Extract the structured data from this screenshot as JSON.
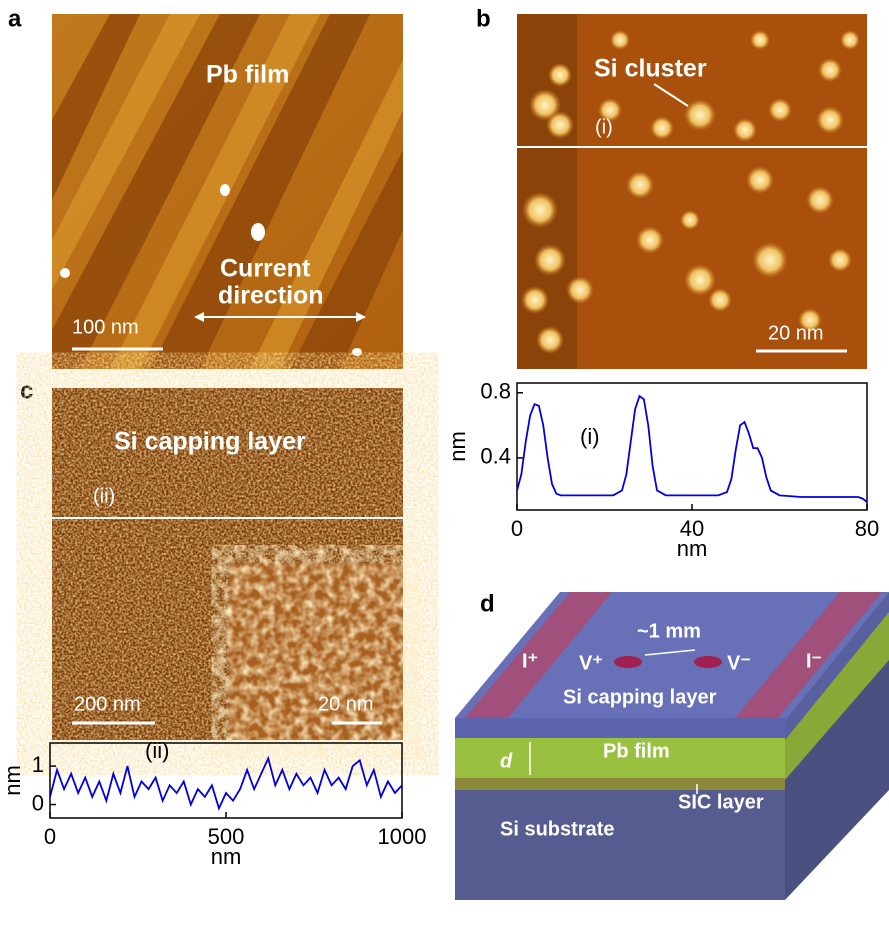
{
  "panels": {
    "a": {
      "label": "a",
      "film": "Pb film",
      "current_1": "Current",
      "current_2": "direction",
      "scale": "100 nm"
    },
    "b": {
      "label": "b",
      "cluster": "Si cluster",
      "line": "(i)",
      "scale": "20 nm"
    },
    "c": {
      "label": "c",
      "layer": "Si capping layer",
      "line": "(ii)",
      "scale": "200 nm",
      "inset_scale": "20 nm"
    },
    "d": {
      "label": "d",
      "distance": "~1 mm",
      "i_plus": "I⁺",
      "v_plus": "V⁺",
      "v_minus": "V⁻",
      "i_minus": "I⁻",
      "capping": "Si capping layer",
      "pb": "Pb film",
      "thickness": "d",
      "sic": "SIC layer",
      "substrate": "Si substrate"
    }
  },
  "chart_data": [
    {
      "type": "line",
      "annotation": "(i)",
      "xlabel": "nm",
      "ylabel": "nm",
      "x": [
        0,
        1,
        2,
        3,
        4,
        5,
        6,
        7,
        8,
        9,
        10,
        14,
        18,
        22,
        24,
        25,
        26,
        27,
        28,
        29,
        30,
        31,
        32,
        34,
        38,
        42,
        46,
        48,
        49,
        50,
        51,
        52,
        53,
        54,
        55,
        56,
        57,
        58,
        60,
        65,
        70,
        75,
        78,
        79,
        80
      ],
      "series": [
        {
          "name": "(i)",
          "color": "#0000e0",
          "values": [
            0.2,
            0.3,
            0.5,
            0.66,
            0.73,
            0.72,
            0.6,
            0.4,
            0.24,
            0.18,
            0.17,
            0.17,
            0.17,
            0.17,
            0.2,
            0.3,
            0.5,
            0.7,
            0.78,
            0.76,
            0.6,
            0.35,
            0.2,
            0.17,
            0.17,
            0.17,
            0.17,
            0.19,
            0.27,
            0.45,
            0.6,
            0.62,
            0.55,
            0.46,
            0.46,
            0.4,
            0.28,
            0.2,
            0.17,
            0.16,
            0.16,
            0.16,
            0.16,
            0.15,
            0.13
          ]
        }
      ],
      "xlim": [
        0,
        80
      ],
      "xticks": [
        0,
        40,
        80
      ],
      "ylim": [
        0.08,
        0.86
      ],
      "yticks": [
        0.4,
        0.8
      ]
    },
    {
      "type": "line",
      "annotation": "(ii)",
      "xlabel": "nm",
      "ylabel": "nm",
      "x": [
        0,
        20,
        40,
        60,
        80,
        100,
        120,
        140,
        160,
        180,
        200,
        220,
        240,
        260,
        280,
        300,
        320,
        340,
        360,
        380,
        400,
        420,
        440,
        460,
        480,
        500,
        520,
        540,
        560,
        580,
        600,
        620,
        640,
        660,
        680,
        700,
        720,
        740,
        760,
        780,
        800,
        820,
        840,
        860,
        880,
        900,
        920,
        940,
        960,
        980,
        1000
      ],
      "series": [
        {
          "name": "(ii)",
          "color": "#0000e0",
          "values": [
            0.2,
            0.9,
            0.4,
            0.8,
            0.3,
            0.7,
            0.2,
            0.6,
            0.1,
            0.8,
            0.3,
            1.0,
            0.2,
            0.6,
            0.4,
            0.7,
            0.1,
            0.5,
            0.3,
            0.6,
            0.0,
            0.4,
            0.2,
            0.5,
            -0.1,
            0.3,
            0.1,
            0.4,
            0.9,
            0.4,
            0.8,
            1.2,
            0.5,
            0.9,
            0.4,
            0.8,
            0.5,
            0.7,
            0.3,
            0.9,
            0.5,
            0.7,
            0.4,
            1.0,
            1.15,
            0.5,
            0.9,
            0.2,
            0.6,
            0.3,
            0.5
          ]
        }
      ],
      "xlim": [
        0,
        1000
      ],
      "xticks": [
        0,
        500,
        1000
      ],
      "ylim": [
        -0.35,
        1.6
      ],
      "yticks": [
        0,
        1
      ]
    }
  ]
}
